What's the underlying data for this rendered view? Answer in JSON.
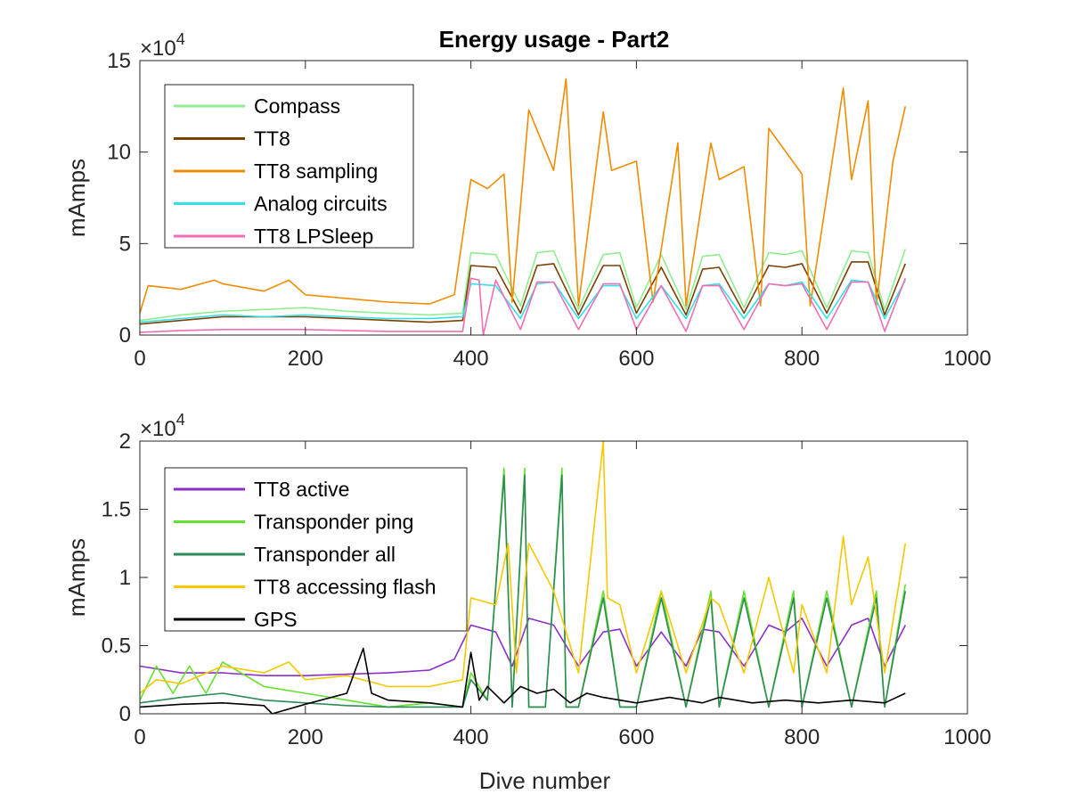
{
  "figure": {
    "title": "Energy usage - Part2"
  },
  "chart_data": [
    {
      "type": "line",
      "title": "Energy usage - Part2",
      "xlabel": "",
      "ylabel": "mAmps",
      "xlim": [
        0,
        1000
      ],
      "ylim": [
        0,
        150000
      ],
      "x_ticks": [
        0,
        200,
        400,
        600,
        800,
        1000
      ],
      "x_tick_labels": [
        "0",
        "200",
        "400",
        "600",
        "800",
        "1000"
      ],
      "y_ticks": [
        0,
        50000,
        100000,
        150000
      ],
      "y_tick_labels": [
        "0",
        "5",
        "10",
        "15"
      ],
      "y_exponent": {
        "base": "×10",
        "power": "4"
      },
      "grid": false,
      "legend_position": "top-left",
      "series": [
        {
          "name": "Compass",
          "color": "#90ee90",
          "x": [
            0,
            50,
            100,
            150,
            200,
            250,
            300,
            350,
            390,
            400,
            430,
            460,
            480,
            500,
            530,
            560,
            580,
            600,
            630,
            660,
            680,
            700,
            730,
            760,
            780,
            800,
            830,
            860,
            880,
            900,
            925
          ],
          "y": [
            8000,
            11000,
            13000,
            14000,
            15000,
            13000,
            12000,
            11000,
            12000,
            45000,
            44000,
            16000,
            45000,
            46000,
            14000,
            44000,
            45000,
            15000,
            44000,
            14000,
            43000,
            44000,
            15000,
            45000,
            44000,
            46000,
            15000,
            46000,
            45000,
            14000,
            47000
          ]
        },
        {
          "name": "TT8",
          "color": "#7b3f00",
          "x": [
            0,
            50,
            100,
            150,
            200,
            250,
            300,
            350,
            390,
            400,
            430,
            460,
            480,
            500,
            530,
            560,
            580,
            600,
            630,
            660,
            680,
            700,
            730,
            760,
            780,
            800,
            830,
            860,
            880,
            900,
            925
          ],
          "y": [
            6000,
            8000,
            10000,
            10000,
            10000,
            9000,
            8000,
            7000,
            8000,
            38000,
            37000,
            12000,
            38000,
            39000,
            11000,
            38000,
            38000,
            12000,
            37000,
            11000,
            36000,
            37000,
            12000,
            38000,
            37000,
            39000,
            12000,
            40000,
            40000,
            11000,
            39000
          ]
        },
        {
          "name": "TT8 sampling",
          "color": "#f08c00",
          "x": [
            0,
            10,
            50,
            90,
            100,
            150,
            180,
            200,
            250,
            300,
            350,
            380,
            400,
            420,
            440,
            450,
            470,
            500,
            515,
            530,
            560,
            570,
            600,
            620,
            650,
            660,
            690,
            700,
            730,
            750,
            760,
            800,
            810,
            850,
            860,
            880,
            890,
            910,
            925
          ],
          "y": [
            12000,
            27000,
            25000,
            30000,
            28000,
            24000,
            30000,
            22000,
            20000,
            18000,
            17000,
            22000,
            85000,
            80000,
            88000,
            18000,
            123000,
            90000,
            140000,
            16000,
            122000,
            90000,
            95000,
            18000,
            105000,
            16000,
            105000,
            85000,
            92000,
            16000,
            113000,
            88000,
            16000,
            135000,
            85000,
            128000,
            16000,
            95000,
            125000
          ]
        },
        {
          "name": "Analog circuits",
          "color": "#33e0e8",
          "x": [
            0,
            50,
            100,
            150,
            200,
            250,
            300,
            350,
            390,
            400,
            430,
            460,
            480,
            500,
            530,
            560,
            580,
            600,
            630,
            660,
            680,
            700,
            730,
            760,
            780,
            800,
            830,
            860,
            880,
            900,
            925
          ],
          "y": [
            7000,
            9000,
            11000,
            10000,
            11000,
            10000,
            9000,
            9000,
            10000,
            28000,
            27000,
            9000,
            28000,
            29000,
            9000,
            27000,
            27000,
            9000,
            27000,
            9000,
            27000,
            28000,
            9000,
            28000,
            27000,
            29000,
            9000,
            30000,
            29000,
            9000,
            30000
          ]
        },
        {
          "name": "TT8 LPSleep",
          "color": "#f06eb4",
          "x": [
            0,
            50,
            100,
            150,
            200,
            250,
            300,
            350,
            390,
            400,
            410,
            415,
            430,
            460,
            480,
            500,
            530,
            560,
            580,
            600,
            630,
            660,
            680,
            700,
            730,
            760,
            780,
            800,
            830,
            860,
            880,
            900,
            925
          ],
          "y": [
            1500,
            2500,
            3000,
            3000,
            3000,
            2500,
            2000,
            2000,
            2000,
            31000,
            30000,
            0,
            30000,
            3000,
            29000,
            29000,
            3000,
            28000,
            28000,
            3000,
            27000,
            2000,
            27000,
            27000,
            3000,
            28000,
            27000,
            28000,
            3000,
            29000,
            29000,
            2000,
            31000
          ]
        }
      ]
    },
    {
      "type": "line",
      "title": "",
      "xlabel": "Dive number",
      "ylabel": "mAmps",
      "xlim": [
        0,
        1000
      ],
      "ylim": [
        0,
        20000
      ],
      "x_ticks": [
        0,
        200,
        400,
        600,
        800,
        1000
      ],
      "x_tick_labels": [
        "0",
        "200",
        "400",
        "600",
        "800",
        "1000"
      ],
      "y_ticks": [
        0,
        5000,
        10000,
        15000,
        20000
      ],
      "y_tick_labels": [
        "0",
        "0.5",
        "1",
        "1.5",
        "2"
      ],
      "y_exponent": {
        "base": "×10",
        "power": "4"
      },
      "grid": false,
      "legend_position": "top-left",
      "series": [
        {
          "name": "TT8 active",
          "color": "#8b2fc9",
          "x": [
            0,
            50,
            100,
            150,
            200,
            250,
            300,
            350,
            380,
            400,
            430,
            450,
            470,
            500,
            530,
            560,
            580,
            600,
            630,
            660,
            680,
            700,
            730,
            760,
            780,
            800,
            830,
            860,
            880,
            900,
            925
          ],
          "y": [
            3500,
            3000,
            3000,
            2800,
            2800,
            2900,
            3000,
            3200,
            4000,
            6500,
            6000,
            3500,
            7000,
            6500,
            3500,
            6000,
            6200,
            3500,
            6000,
            3500,
            6200,
            6000,
            3500,
            6500,
            6000,
            7000,
            3500,
            6500,
            7000,
            3500,
            6500
          ]
        },
        {
          "name": "Transponder ping",
          "color": "#66e02e",
          "x": [
            0,
            20,
            40,
            60,
            80,
            100,
            150,
            200,
            250,
            300,
            350,
            390,
            400,
            420,
            440,
            450,
            465,
            470,
            490,
            510,
            515,
            530,
            560,
            580,
            600,
            630,
            660,
            690,
            700,
            730,
            760,
            790,
            800,
            830,
            860,
            890,
            900,
            925
          ],
          "y": [
            1000,
            3500,
            1500,
            3500,
            1500,
            3800,
            2000,
            1500,
            1000,
            500,
            800,
            500,
            3000,
            1000,
            18000,
            500,
            18000,
            500,
            500,
            18000,
            500,
            500,
            9000,
            500,
            500,
            9000,
            500,
            9000,
            500,
            9000,
            500,
            9000,
            500,
            9000,
            500,
            9000,
            500,
            9500
          ]
        },
        {
          "name": "Transponder all",
          "color": "#2e8b57",
          "x": [
            0,
            50,
            100,
            150,
            200,
            250,
            300,
            350,
            390,
            400,
            420,
            440,
            450,
            465,
            470,
            490,
            510,
            515,
            530,
            560,
            580,
            600,
            630,
            660,
            690,
            700,
            730,
            760,
            790,
            800,
            830,
            860,
            890,
            900,
            925
          ],
          "y": [
            800,
            1200,
            1500,
            1000,
            800,
            600,
            500,
            500,
            500,
            2500,
            1000,
            17500,
            500,
            17500,
            500,
            500,
            17500,
            500,
            500,
            8500,
            500,
            500,
            8500,
            500,
            8500,
            500,
            8500,
            500,
            8500,
            500,
            8500,
            500,
            8500,
            500,
            9000
          ]
        },
        {
          "name": "TT8 accessing flash",
          "color": "#f5c800",
          "x": [
            0,
            20,
            50,
            100,
            150,
            180,
            200,
            250,
            300,
            350,
            390,
            400,
            430,
            445,
            455,
            470,
            500,
            530,
            560,
            565,
            580,
            600,
            630,
            660,
            690,
            700,
            730,
            760,
            790,
            800,
            830,
            850,
            860,
            880,
            900,
            925
          ],
          "y": [
            1500,
            2500,
            2200,
            3500,
            3000,
            3800,
            2500,
            2800,
            2000,
            2000,
            2500,
            8500,
            8000,
            12500,
            3000,
            12500,
            9000,
            3000,
            20000,
            8500,
            8000,
            3000,
            9000,
            3000,
            8500,
            8000,
            3000,
            10000,
            3000,
            8000,
            3000,
            13000,
            8000,
            11500,
            3000,
            12500
          ]
        },
        {
          "name": "GPS",
          "color": "#000000",
          "x": [
            0,
            50,
            100,
            150,
            160,
            200,
            250,
            270,
            280,
            300,
            350,
            390,
            400,
            410,
            420,
            440,
            460,
            480,
            500,
            520,
            540,
            560,
            600,
            640,
            680,
            700,
            740,
            780,
            820,
            860,
            900,
            925
          ],
          "y": [
            500,
            700,
            800,
            600,
            0,
            700,
            1500,
            4800,
            1500,
            1000,
            800,
            500,
            4500,
            1000,
            2000,
            800,
            2000,
            1500,
            1800,
            800,
            1500,
            1200,
            800,
            1200,
            800,
            1200,
            800,
            1000,
            800,
            1000,
            800,
            1500
          ]
        }
      ]
    }
  ]
}
